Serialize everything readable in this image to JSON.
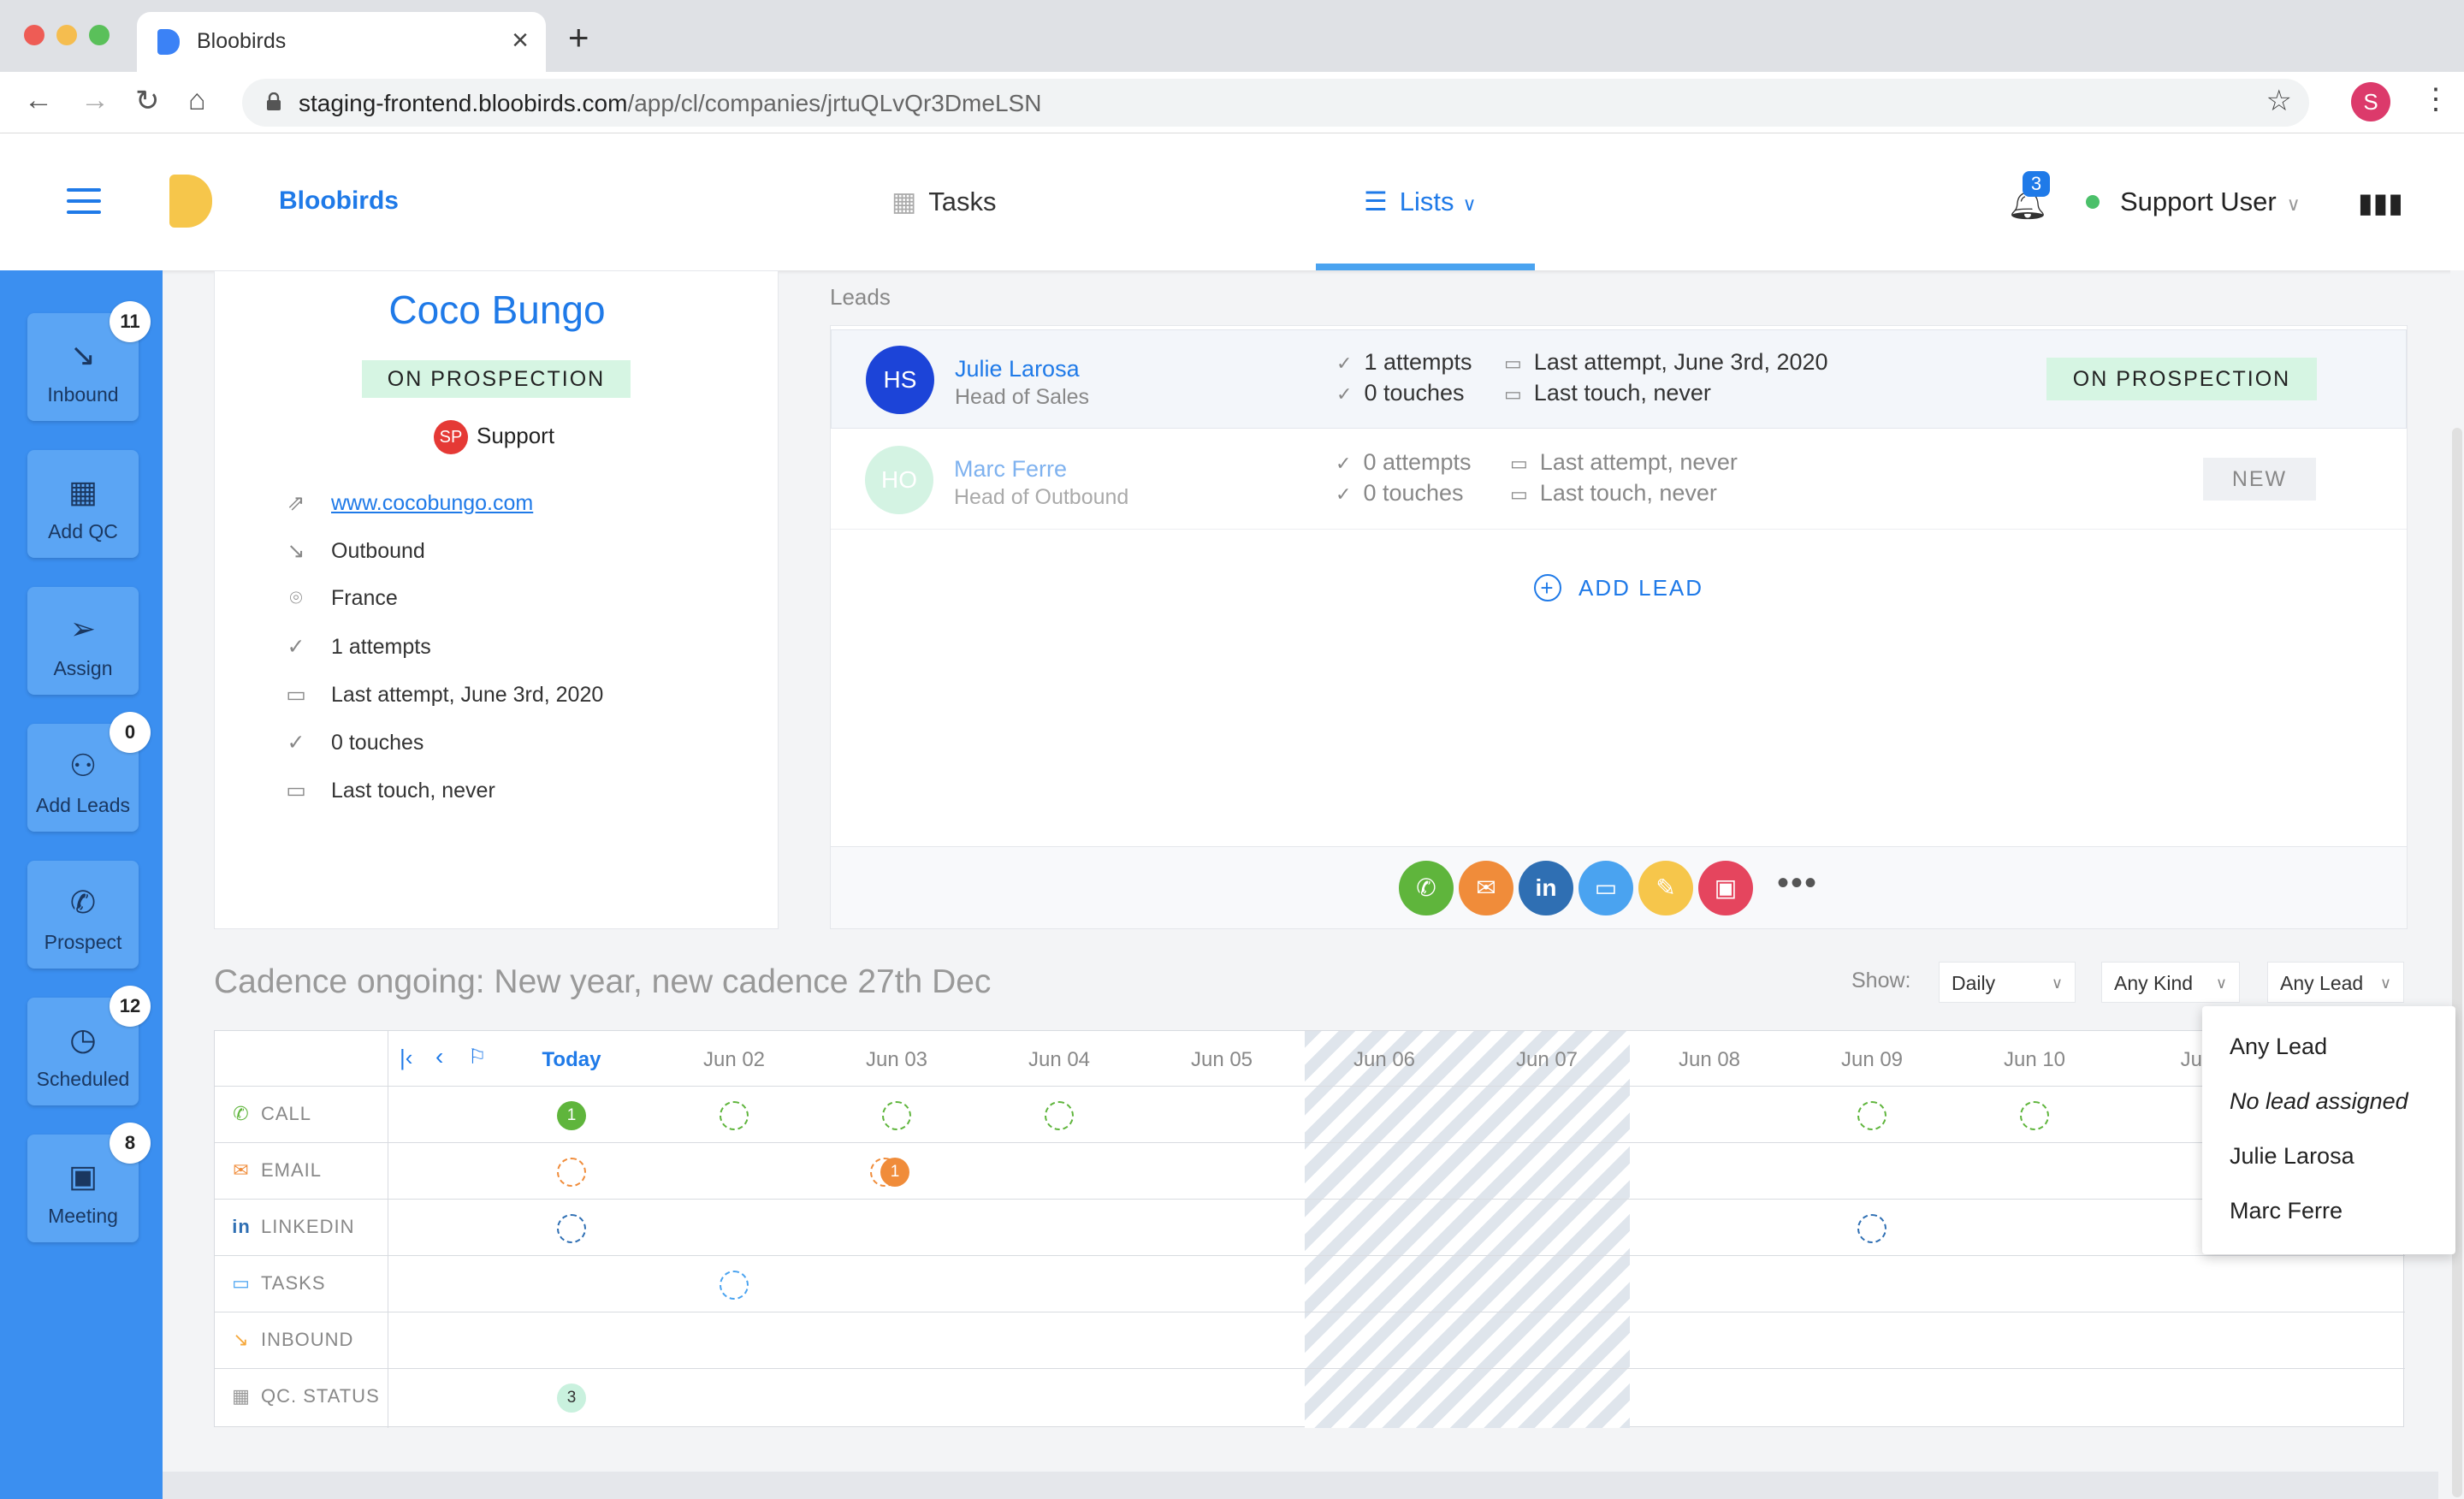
{
  "browser": {
    "tab_title": "Bloobirds",
    "url_host": "staging-frontend.bloobirds.com",
    "url_path": "/app/cl/companies/jrtuQLvQr3DmeLSN",
    "profile_initial": "S"
  },
  "header": {
    "brand": "Bloobirds",
    "tasks": "Tasks",
    "lists": "Lists",
    "notif_count": "3",
    "user": "Support User"
  },
  "sidebar": [
    {
      "label": "Inbound",
      "badge": "11"
    },
    {
      "label": "Add QC",
      "badge": ""
    },
    {
      "label": "Assign",
      "badge": ""
    },
    {
      "label": "Add Leads",
      "badge": "0"
    },
    {
      "label": "Prospect",
      "badge": ""
    },
    {
      "label": "Scheduled",
      "badge": "12"
    },
    {
      "label": "Meeting",
      "badge": "8"
    }
  ],
  "company": {
    "name": "Coco Bungo",
    "status": "ON PROSPECTION",
    "owner_initials": "SP",
    "owner": "Support",
    "website": "www.cocobungo.com",
    "source": "Outbound",
    "country": "France",
    "attempts": "1 attempts",
    "last_attempt": "Last attempt, June 3rd, 2020",
    "touches": "0 touches",
    "last_touch": "Last touch, never"
  },
  "leads": {
    "header": "Leads",
    "add_label": "ADD LEAD",
    "items": [
      {
        "initials": "HS",
        "name": "Julie Larosa",
        "role": "Head of Sales",
        "attempts": "1 attempts",
        "touches": "0 touches",
        "last_attempt": "Last attempt, June 3rd, 2020",
        "last_touch": "Last touch, never",
        "status": "ON PROSPECTION"
      },
      {
        "initials": "HO",
        "name": "Marc Ferre",
        "role": "Head of Outbound",
        "attempts": "0 attempts",
        "touches": "0 touches",
        "last_attempt": "Last attempt, never",
        "last_touch": "Last touch, never",
        "status": "NEW"
      }
    ]
  },
  "cadence": {
    "title": "Cadence ongoing: New year, new cadence 27th Dec",
    "show_label": "Show:",
    "filters": {
      "period": "Daily",
      "kind": "Any Kind",
      "lead": "Any Lead"
    },
    "days": [
      "Today",
      "Jun 02",
      "Jun 03",
      "Jun 04",
      "Jun 05",
      "Jun 06",
      "Jun 07",
      "Jun 08",
      "Jun 09",
      "Jun 10",
      "Jun"
    ],
    "rows": [
      "CALL",
      "EMAIL",
      "LINKEDIN",
      "TASKS",
      "INBOUND",
      "QC. STATUS"
    ],
    "counts": {
      "call_today": "1",
      "email_jun03": "1",
      "qc_today": "3"
    }
  },
  "lead_menu": [
    "Any Lead",
    "No lead assigned",
    "Julie Larosa",
    "Marc Ferre"
  ],
  "colors": {
    "accent": "#1f7ae8",
    "sidebar": "#3b8ff0",
    "prospection": "#d6f5e3",
    "call": "#5fb53c",
    "email": "#f08c3a"
  }
}
